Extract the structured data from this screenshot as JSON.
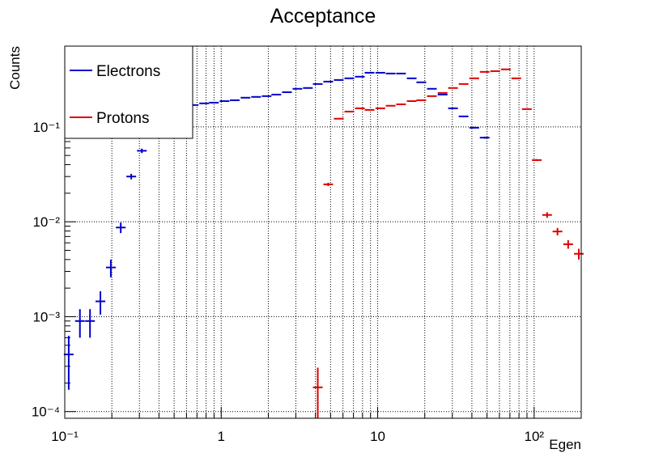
{
  "chart_data": {
    "type": "errorbar",
    "title": "Acceptance",
    "x_label": "Egen",
    "y_label": "Counts",
    "log_x": true,
    "log_y": true,
    "grid": true,
    "legend_position": "upper left",
    "xlim": [
      0.1,
      200
    ],
    "ylim": [
      8.5e-05,
      0.71
    ],
    "xticks": [
      {
        "value": 0.1,
        "label": "10⁻¹"
      },
      1,
      10,
      {
        "value": 100,
        "label": "10²"
      }
    ],
    "yticks": [
      {
        "value": 0.0001,
        "label": "10⁻⁴"
      },
      {
        "value": 0.001,
        "label": "10⁻³"
      },
      {
        "value": 0.01,
        "label": "10⁻²"
      },
      {
        "value": 0.1,
        "label": "10⁻¹"
      }
    ],
    "x_minor_ticks": [
      0.2,
      0.3,
      0.4,
      0.5,
      0.6,
      0.7,
      0.8,
      0.9,
      2,
      3,
      4,
      5,
      6,
      7,
      8,
      9,
      20,
      30,
      40,
      50,
      60,
      70,
      80,
      90,
      200
    ],
    "y_minor_ticks": [
      0.0002,
      0.0003,
      0.0004,
      0.0005,
      0.0006,
      0.0007,
      0.0008,
      0.0009,
      0.002,
      0.003,
      0.004,
      0.005,
      0.006,
      0.007,
      0.008,
      0.009,
      0.02,
      0.03,
      0.04,
      0.05,
      0.06,
      0.07,
      0.08,
      0.09,
      0.2,
      0.3,
      0.4,
      0.5,
      0.6,
      0.7
    ],
    "series": [
      {
        "name": "Electrons",
        "color": "#0000cc",
        "x": [
          0.106,
          0.125,
          0.145,
          0.169,
          0.197,
          0.228,
          0.266,
          0.311,
          0.489,
          0.571,
          0.667,
          0.778,
          0.898,
          1.05,
          1.22,
          1.43,
          1.67,
          1.95,
          2.25,
          2.63,
          3.07,
          3.58,
          4.14,
          4.83,
          5.64,
          6.59,
          7.69,
          8.87,
          10.4,
          12.1,
          14.1,
          16.5,
          19.0,
          22.2,
          26.0,
          30.3,
          35.4,
          41.4,
          48.3
        ],
        "values": [
          0.0004,
          0.0009,
          0.0009,
          0.00145,
          0.0033,
          0.0087,
          0.03,
          0.056,
          0.157,
          0.167,
          0.17,
          0.177,
          0.18,
          0.187,
          0.191,
          0.203,
          0.207,
          0.211,
          0.219,
          0.232,
          0.252,
          0.257,
          0.283,
          0.3,
          0.312,
          0.325,
          0.338,
          0.372,
          0.372,
          0.365,
          0.365,
          0.325,
          0.295,
          0.252,
          0.219,
          0.157,
          0.129,
          0.098,
          0.077
        ],
        "errors": [
          0.00023,
          0.0003,
          0.0003,
          0.0004,
          0.0007,
          0.0011,
          0.002,
          0.003,
          0.002,
          0.002,
          0.002,
          0.002,
          0.002,
          0.002,
          0.002,
          0.002,
          0.002,
          0.002,
          0.002,
          0.002,
          0.002,
          0.002,
          0.002,
          0.002,
          0.002,
          0.002,
          0.002,
          0.002,
          0.002,
          0.002,
          0.002,
          0.002,
          0.002,
          0.002,
          0.002,
          0.002,
          0.002,
          0.002,
          0.002
        ]
      },
      {
        "name": "Protons",
        "color": "#dd0000",
        "x": [
          4.14,
          4.83,
          5.64,
          6.59,
          7.69,
          8.87,
          10.4,
          12.1,
          14.1,
          16.5,
          19.0,
          22.2,
          26.0,
          30.3,
          35.4,
          41.4,
          48.3,
          56.4,
          65.9,
          76.9,
          89.8,
          104,
          121,
          141,
          165,
          193
        ],
        "values": [
          0.00018,
          0.0248,
          0.122,
          0.145,
          0.157,
          0.151,
          0.157,
          0.167,
          0.173,
          0.187,
          0.191,
          0.211,
          0.228,
          0.257,
          0.283,
          0.325,
          0.38,
          0.387,
          0.404,
          0.325,
          0.154,
          0.0447,
          0.0118,
          0.0079,
          0.0058,
          0.0046
        ],
        "errors": [
          0.00011,
          0.001,
          0.002,
          0.002,
          0.002,
          0.002,
          0.002,
          0.002,
          0.002,
          0.002,
          0.002,
          0.002,
          0.002,
          0.002,
          0.002,
          0.002,
          0.002,
          0.002,
          0.002,
          0.002,
          0.002,
          0.001,
          0.0008,
          0.0007,
          0.0006,
          0.0006
        ]
      }
    ]
  }
}
